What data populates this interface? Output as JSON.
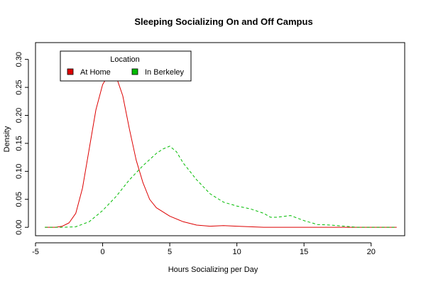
{
  "chart_data": {
    "type": "line",
    "title": "Sleeping Socializing On and Off Campus",
    "xlabel": "Hours Socializing per Day",
    "ylabel": "Density",
    "xlim": [
      -5,
      22.5
    ],
    "ylim": [
      -0.015,
      0.33
    ],
    "x_ticks": [
      -5,
      0,
      5,
      10,
      15,
      20
    ],
    "y_ticks": [
      0.0,
      0.05,
      0.1,
      0.15,
      0.2,
      0.25,
      0.3
    ],
    "x_tick_labels": [
      "-5",
      "0",
      "5",
      "10",
      "15",
      "20"
    ],
    "y_tick_labels": [
      "0.00",
      "0.05",
      "0.10",
      "0.15",
      "0.20",
      "0.25",
      "0.30"
    ],
    "grid": false,
    "legend": {
      "title": "Location",
      "placement": "top-left",
      "entries": [
        {
          "label": "At Home",
          "color": "#dd0000"
        },
        {
          "label": "In Berkeley",
          "color": "#00bb00"
        }
      ]
    },
    "series": [
      {
        "name": "At Home",
        "color": "#dd0000",
        "line_style": "solid",
        "x": [
          -4.3,
          -3.5,
          -3.0,
          -2.5,
          -2.0,
          -1.5,
          -1.0,
          -0.5,
          0.0,
          0.5,
          1.0,
          1.5,
          2.0,
          2.5,
          3.0,
          3.5,
          4.0,
          5.0,
          6.0,
          7.0,
          8.0,
          9.0,
          10.0,
          11.0,
          12.0,
          13.0,
          15.0,
          17.0,
          19.0,
          20.0,
          21.9
        ],
        "y": [
          0.0,
          0.0,
          0.002,
          0.008,
          0.025,
          0.07,
          0.14,
          0.21,
          0.255,
          0.275,
          0.27,
          0.235,
          0.175,
          0.12,
          0.08,
          0.05,
          0.035,
          0.02,
          0.01,
          0.004,
          0.002,
          0.003,
          0.002,
          0.001,
          0.0,
          0.0,
          0.0,
          0.0,
          0.0,
          0.0,
          0.0
        ]
      },
      {
        "name": "In Berkeley",
        "color": "#00bb00",
        "line_style": "dashed",
        "x": [
          -4.3,
          -3.0,
          -2.0,
          -1.0,
          0.0,
          1.0,
          2.0,
          3.0,
          4.0,
          4.5,
          5.0,
          5.5,
          6.0,
          7.0,
          8.0,
          9.0,
          10.0,
          11.0,
          12.0,
          12.5,
          13.0,
          14.0,
          15.0,
          16.0,
          17.0,
          18.0,
          19.0,
          20.0,
          21.9
        ],
        "y": [
          0.0,
          0.0,
          0.001,
          0.01,
          0.03,
          0.055,
          0.085,
          0.11,
          0.132,
          0.14,
          0.145,
          0.135,
          0.115,
          0.085,
          0.06,
          0.045,
          0.038,
          0.033,
          0.025,
          0.018,
          0.018,
          0.021,
          0.012,
          0.005,
          0.004,
          0.002,
          0.0,
          0.0,
          0.0
        ]
      }
    ]
  }
}
